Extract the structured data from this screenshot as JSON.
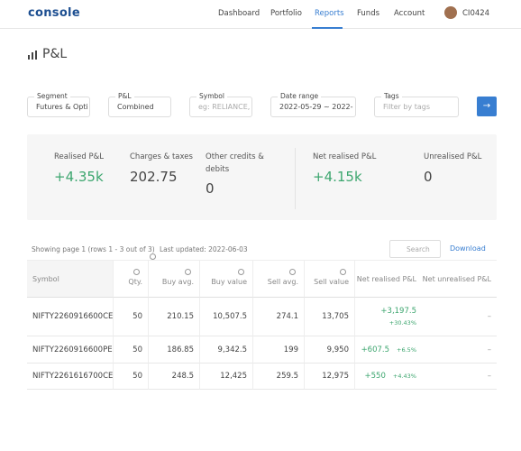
{
  "nav": {
    "logo": "console",
    "links": [
      "Dashboard",
      "Portfolio",
      "Reports",
      "Funds",
      "Account"
    ],
    "active": "Reports",
    "user": "CI0424"
  },
  "page_title": "P&L",
  "filters": [
    {
      "label": "Segment",
      "value": "Futures & Opti"
    },
    {
      "label": "P&L",
      "value": "Combined"
    },
    {
      "label": "Symbol",
      "placeholder": "eg: RELIANCE,"
    },
    {
      "label": "Date range",
      "value": "2022-05-29 ~ 2022-"
    },
    {
      "label": "Tags",
      "placeholder": "Filter by tags"
    }
  ],
  "summary": [
    {
      "label": "Realised P&L",
      "value": "+4.35k"
    },
    {
      "label": "Charges & taxes",
      "value": "202.75"
    },
    {
      "label": "Other credits & debits",
      "value": "0"
    },
    {
      "label": "Net realised P&L",
      "value": "+4.15k"
    },
    {
      "label": "Unrealised P&L",
      "value": "0"
    }
  ],
  "table_info": {
    "showing": "Showing page 1 (rows 1 - 3 out of 3)",
    "updated": "Last updated: 2022-06-03",
    "search": "Search",
    "download": "Download"
  },
  "table": {
    "headers": [
      "Symbol",
      "Qty.",
      "Buy avg.",
      "Buy value",
      "Sell avg.",
      "Sell value",
      "Net realised P&L",
      "Net unrealised P&L"
    ],
    "rows": [
      [
        "NIFTY2260916600CE",
        "50",
        "210.15",
        "10,507.5",
        "274.1",
        "13,705",
        {
          "value": "+3,197.5",
          "percent": "+30.43%"
        },
        "–"
      ],
      [
        "NIFTY2260916600PE",
        "50",
        "186.85",
        "9,342.5",
        "199",
        "9,950",
        {
          "value": "+607.5",
          "percent": "+6.5%"
        },
        "–"
      ],
      [
        "NIFTY2261616700CE",
        "50",
        "248.5",
        "12,425",
        "259.5",
        "12,975",
        {
          "value": "+550",
          "percent": "+4.43%"
        },
        "–"
      ]
    ]
  }
}
